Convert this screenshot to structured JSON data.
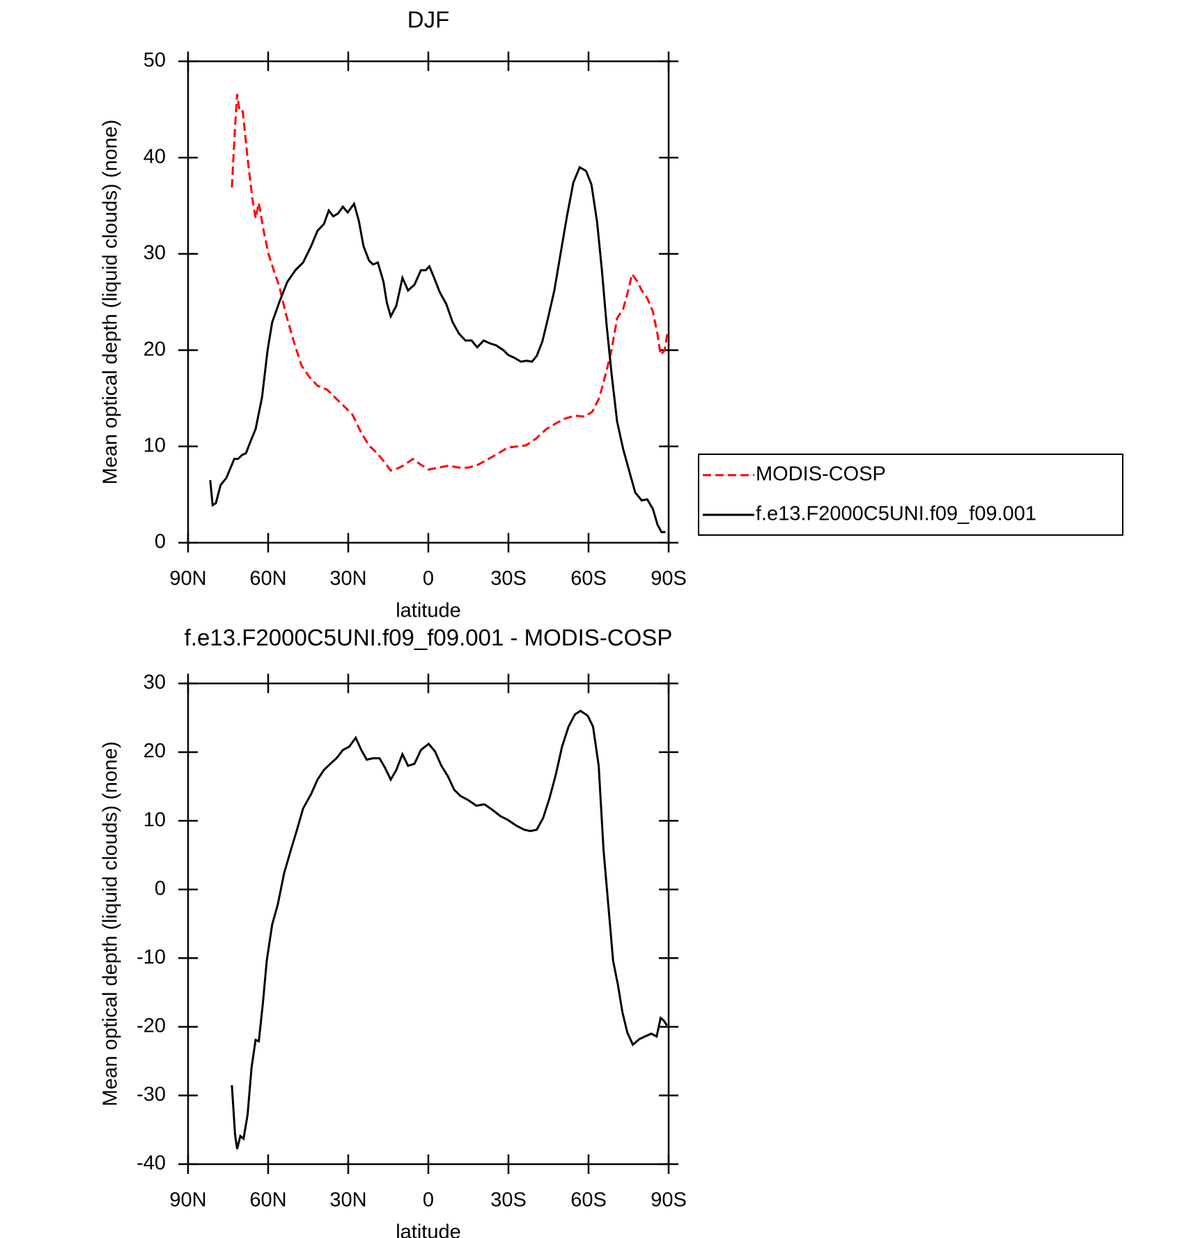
{
  "chart_data": [
    {
      "type": "line",
      "title": "DJF",
      "xlabel": "latitude",
      "ylabel": "Mean optical depth (liquid clouds) (none)",
      "xlim": [
        90,
        -90
      ],
      "xticks": [
        {
          "value": 90,
          "label": "90N"
        },
        {
          "value": 60,
          "label": "60N"
        },
        {
          "value": 30,
          "label": "30N"
        },
        0,
        {
          "value": -30,
          "label": "30S"
        },
        {
          "value": -60,
          "label": "60S"
        },
        {
          "value": -90,
          "label": "90S"
        }
      ],
      "ylim": [
        0,
        50
      ],
      "yticks": [
        0,
        10,
        20,
        30,
        40,
        50
      ],
      "legend": "right",
      "series": [
        {
          "name": "MODIS-COSP",
          "color": "#ff0000",
          "dashed": true,
          "x": [
            73.6,
            72.4,
            71.6,
            70.7,
            69.5,
            67.7,
            65.9,
            64.7,
            63.5,
            61.7,
            59.9,
            57.9,
            55.8,
            53.4,
            50.4,
            47.5,
            44.5,
            41.5,
            37.9,
            35.0,
            32.0,
            28.4,
            25.1,
            22.2,
            19.2,
            16.8,
            14.1,
            11.7,
            9.4,
            5.8,
            2.8,
            -0.1,
            -3.7,
            -7.6,
            -11.5,
            -15.0,
            -18.6,
            -22.5,
            -26.3,
            -29.9,
            -33.5,
            -36.5,
            -40.3,
            -44.2,
            -47.8,
            -51.3,
            -54.9,
            -58.5,
            -61.4,
            -64.1,
            -66.5,
            -68.6,
            -70.7,
            -73.0,
            -74.5,
            -76.3,
            -78.4,
            -79.9,
            -82.0,
            -84.1,
            -85.8,
            -87.0,
            -88.5,
            -89.7
          ],
          "values": [
            36.9,
            43.2,
            46.6,
            44.8,
            44.8,
            39.9,
            35.7,
            33.7,
            35.3,
            32.4,
            30.0,
            28.3,
            26.6,
            23.8,
            20.9,
            18.4,
            17.2,
            16.3,
            15.9,
            15.1,
            14.3,
            13.3,
            11.4,
            10.1,
            9.3,
            8.5,
            7.5,
            7.7,
            8.0,
            8.7,
            8.1,
            7.6,
            7.8,
            8.0,
            7.8,
            7.8,
            8.1,
            8.7,
            9.3,
            9.9,
            10.0,
            10.1,
            10.8,
            11.8,
            12.4,
            12.9,
            13.2,
            13.1,
            13.6,
            15.1,
            17.6,
            20.0,
            23.3,
            24.3,
            25.8,
            27.9,
            27.1,
            26.2,
            25.4,
            24.0,
            21.7,
            19.5,
            20.0,
            22.1
          ]
        },
        {
          "name": "f.e13.F2000C5UNI.f09_f09.001",
          "color": "#000000",
          "dashed": false,
          "x": [
            81.7,
            80.8,
            79.6,
            77.8,
            75.7,
            74.2,
            72.7,
            71.3,
            69.8,
            68.3,
            66.5,
            64.7,
            62.3,
            60.2,
            58.5,
            55.8,
            52.8,
            49.8,
            46.9,
            43.9,
            41.5,
            39.1,
            37.3,
            35.6,
            33.8,
            32.0,
            30.2,
            27.8,
            26.0,
            24.3,
            22.2,
            20.7,
            18.9,
            16.8,
            15.6,
            14.1,
            12.0,
            9.7,
            7.6,
            5.2,
            2.8,
            1.0,
            -0.4,
            -2.2,
            -4.3,
            -6.7,
            -9.1,
            -11.5,
            -13.9,
            -16.2,
            -18.3,
            -20.7,
            -23.1,
            -25.4,
            -28.1,
            -29.9,
            -32.3,
            -34.7,
            -36.7,
            -38.8,
            -40.6,
            -42.7,
            -44.8,
            -47.2,
            -49.5,
            -51.9,
            -54.3,
            -56.7,
            -59.1,
            -61.1,
            -63.2,
            -65.0,
            -66.8,
            -68.6,
            -70.7,
            -73.0,
            -75.4,
            -77.5,
            -79.9,
            -82.0,
            -84.1,
            -85.8,
            -87.3,
            -88.8
          ],
          "values": [
            6.5,
            3.9,
            4.1,
            6.0,
            6.7,
            7.7,
            8.7,
            8.7,
            9.1,
            9.3,
            10.6,
            11.8,
            15.1,
            20.0,
            22.9,
            25.0,
            27.1,
            28.3,
            29.1,
            30.8,
            32.4,
            33.1,
            34.5,
            33.9,
            34.2,
            34.9,
            34.3,
            35.2,
            33.4,
            30.8,
            29.3,
            28.9,
            29.1,
            27.1,
            25.0,
            23.5,
            24.6,
            27.5,
            26.2,
            26.8,
            28.3,
            28.3,
            28.7,
            27.5,
            26.0,
            24.8,
            22.9,
            21.7,
            21.0,
            21.0,
            20.3,
            21.0,
            20.7,
            20.5,
            20.0,
            19.5,
            19.2,
            18.8,
            18.9,
            18.8,
            19.4,
            20.9,
            23.3,
            26.2,
            30.0,
            33.9,
            37.4,
            39.0,
            38.6,
            37.2,
            33.3,
            28.3,
            22.5,
            17.6,
            12.6,
            9.7,
            7.3,
            5.2,
            4.4,
            4.5,
            3.5,
            1.9,
            1.1,
            1.1
          ]
        }
      ]
    },
    {
      "type": "line",
      "title": "f.e13.F2000C5UNI.f09_f09.001 - MODIS-COSP",
      "xlabel": "latitude",
      "ylabel": "Mean optical depth (liquid clouds) (none)",
      "xlim": [
        90,
        -90
      ],
      "xticks": [
        {
          "value": 90,
          "label": "90N"
        },
        {
          "value": 60,
          "label": "60N"
        },
        {
          "value": 30,
          "label": "30N"
        },
        0,
        {
          "value": -30,
          "label": "30S"
        },
        {
          "value": -60,
          "label": "60S"
        },
        {
          "value": -90,
          "label": "90S"
        }
      ],
      "ylim": [
        -40,
        30
      ],
      "yticks": [
        -40,
        -30,
        -20,
        -10,
        0,
        10,
        20,
        30
      ],
      "series": [
        {
          "color": "#000000",
          "dashed": false,
          "x": [
            73.6,
            72.4,
            71.6,
            70.4,
            69.2,
            67.7,
            66.2,
            64.7,
            63.5,
            62.0,
            60.5,
            58.5,
            56.4,
            54.0,
            51.6,
            49.2,
            46.9,
            43.9,
            41.5,
            39.1,
            36.7,
            34.4,
            32.0,
            29.6,
            27.2,
            25.1,
            23.1,
            20.7,
            18.3,
            16.2,
            14.1,
            12.0,
            9.7,
            7.6,
            5.2,
            2.8,
            -0.1,
            -2.5,
            -4.9,
            -7.3,
            -9.7,
            -12.1,
            -15.0,
            -18.0,
            -21.0,
            -24.0,
            -26.9,
            -29.9,
            -32.9,
            -35.9,
            -38.2,
            -40.6,
            -43.0,
            -45.4,
            -47.8,
            -50.1,
            -52.5,
            -54.9,
            -57.0,
            -59.7,
            -61.7,
            -63.8,
            -65.6,
            -67.4,
            -69.2,
            -71.0,
            -72.7,
            -74.5,
            -76.6,
            -79.0,
            -81.1,
            -83.5,
            -85.5,
            -87.0,
            -88.2,
            -89.4
          ],
          "values": [
            -28.5,
            -35.7,
            -37.8,
            -35.9,
            -36.3,
            -32.8,
            -25.9,
            -21.9,
            -22.1,
            -16.7,
            -10.3,
            -5.1,
            -2.2,
            2.4,
            5.6,
            8.7,
            11.8,
            13.9,
            16.0,
            17.4,
            18.3,
            19.1,
            20.3,
            20.8,
            22.1,
            20.3,
            18.9,
            19.1,
            19.1,
            17.7,
            16.0,
            17.4,
            19.7,
            18.0,
            18.3,
            20.3,
            21.2,
            20.1,
            18.0,
            16.5,
            14.5,
            13.6,
            13.0,
            12.2,
            12.4,
            11.6,
            10.7,
            10.1,
            9.3,
            8.7,
            8.5,
            8.7,
            10.4,
            13.3,
            16.8,
            20.8,
            23.7,
            25.5,
            26.0,
            25.3,
            23.7,
            18.0,
            5.8,
            -2.3,
            -10.4,
            -13.9,
            -17.9,
            -20.8,
            -22.6,
            -21.8,
            -21.4,
            -21.0,
            -21.4,
            -18.7,
            -19.1,
            -19.8
          ]
        }
      ]
    }
  ]
}
